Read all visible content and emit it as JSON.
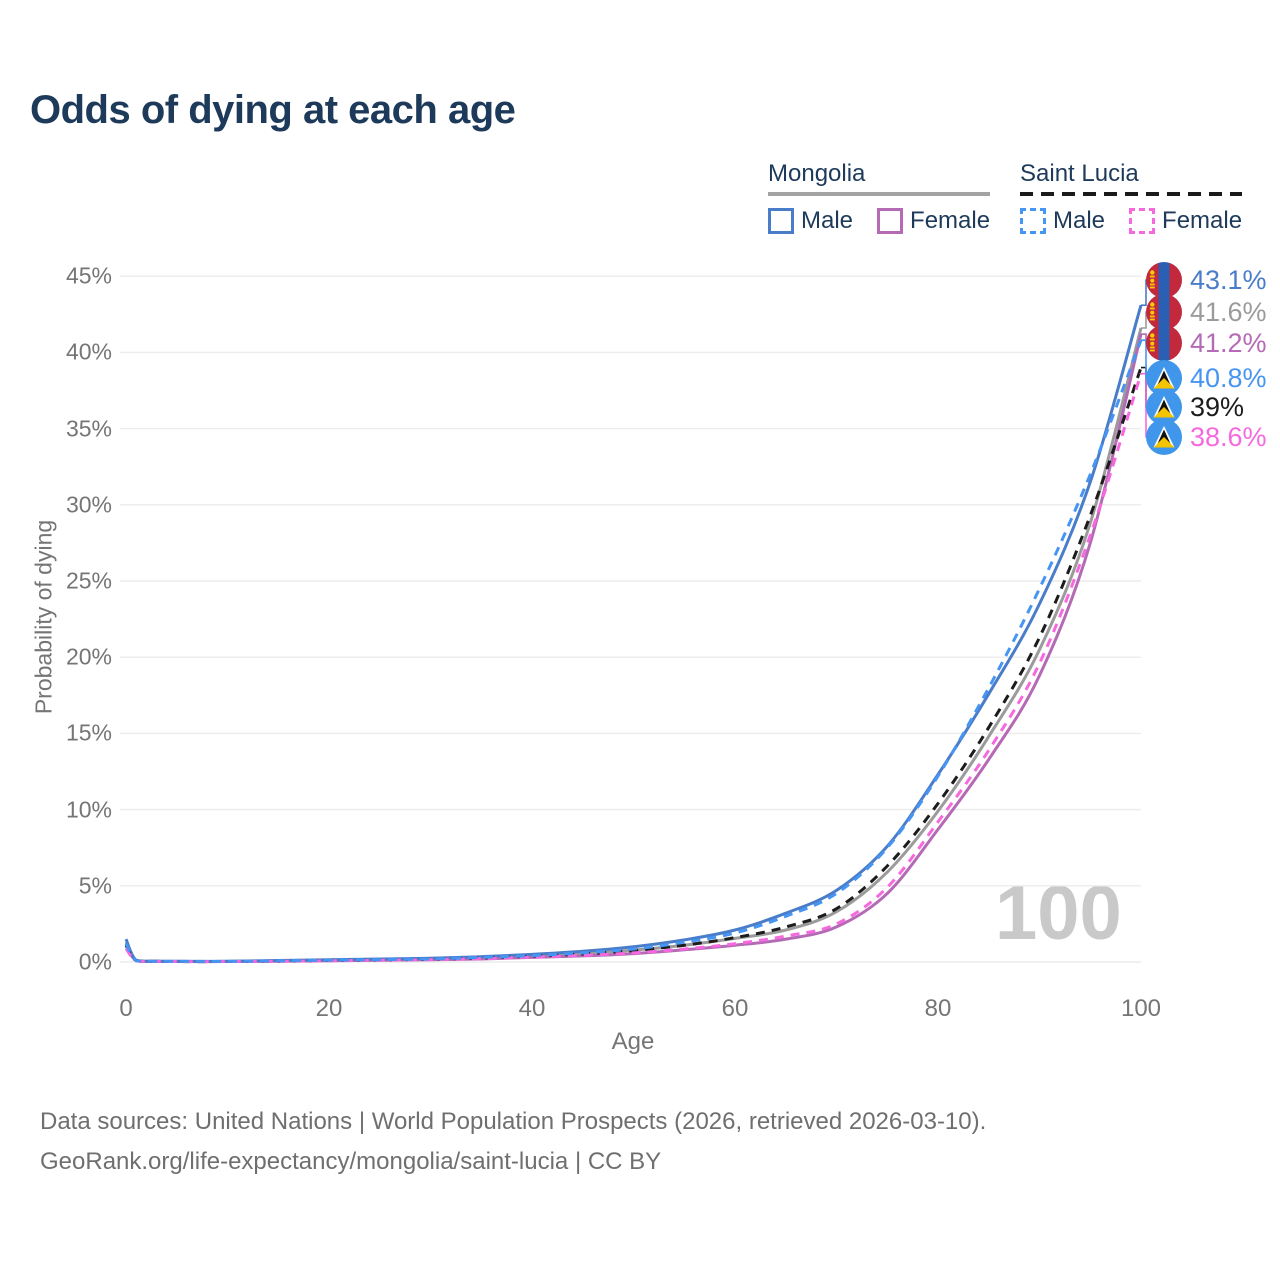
{
  "title": "Odds of dying at each age",
  "legend": {
    "groups": [
      {
        "name": "Mongolia",
        "line_style": "solid",
        "underline_color": "#a3a3a3",
        "items": [
          {
            "label": "Male",
            "color": "#4a7dc9"
          },
          {
            "label": "Female",
            "color": "#b46ab4"
          }
        ]
      },
      {
        "name": "Saint Lucia",
        "line_style": "dashed",
        "underline_color": "#1a1a1a",
        "items": [
          {
            "label": "Male",
            "color": "#4795f2"
          },
          {
            "label": "Female",
            "color": "#f669de"
          }
        ]
      }
    ]
  },
  "axes": {
    "x": {
      "label": "Age",
      "ticks": [
        "0",
        "20",
        "40",
        "60",
        "80",
        "100"
      ]
    },
    "y": {
      "label": "Probability of dying",
      "ticks": [
        "0%",
        "5%",
        "10%",
        "15%",
        "20%",
        "25%",
        "30%",
        "35%",
        "40%",
        "45%"
      ]
    }
  },
  "watermark": "100",
  "end_labels": [
    {
      "value": "43.1%",
      "flag": "mongolia",
      "color": "#4a7dc9"
    },
    {
      "value": "41.6%",
      "flag": "mongolia",
      "color": "#9b9b9b"
    },
    {
      "value": "41.2%",
      "flag": "mongolia",
      "color": "#b46ab4"
    },
    {
      "value": "40.8%",
      "flag": "saint-lucia",
      "color": "#4795f2"
    },
    {
      "value": "39%",
      "flag": "saint-lucia",
      "color": "#1c1c1c"
    },
    {
      "value": "38.6%",
      "flag": "saint-lucia",
      "color": "#f669de"
    }
  ],
  "footer": {
    "line1": "Data sources: United Nations | World Population Prospects (2026, retrieved 2026-03-10).",
    "line2": "GeoRank.org/life-expectancy/mongolia/saint-lucia | CC BY"
  },
  "chart_data": {
    "type": "line",
    "title": "Odds of dying at each age",
    "xlabel": "Age",
    "ylabel": "Probability of dying",
    "units": "percent",
    "xlim": [
      0,
      100
    ],
    "ylim": [
      0,
      45
    ],
    "grid": "horizontal",
    "legend_position": "top-right",
    "x": [
      0,
      1,
      3,
      5,
      10,
      15,
      20,
      25,
      30,
      35,
      40,
      45,
      50,
      55,
      60,
      65,
      70,
      75,
      80,
      85,
      90,
      95,
      100
    ],
    "series": [
      {
        "name": "Mongolia All",
        "country": "Mongolia",
        "sex": "all",
        "color": "#9b9b9b",
        "dashed": false,
        "end_label": "41.6%",
        "end_label_index": 1,
        "values": [
          1.3,
          0.1,
          0.05,
          0.04,
          0.04,
          0.08,
          0.12,
          0.16,
          0.2,
          0.28,
          0.4,
          0.55,
          0.78,
          1.1,
          1.55,
          2.1,
          3.3,
          5.9,
          9.9,
          14.8,
          20.5,
          28.8,
          41.6
        ]
      },
      {
        "name": "Mongolia Female",
        "country": "Mongolia",
        "sex": "female",
        "color": "#b46ab4",
        "dashed": false,
        "end_label": "41.2%",
        "end_label_index": 2,
        "values": [
          1.1,
          0.09,
          0.04,
          0.03,
          0.03,
          0.05,
          0.08,
          0.11,
          0.15,
          0.2,
          0.3,
          0.4,
          0.55,
          0.8,
          1.1,
          1.5,
          2.3,
          4.5,
          8.7,
          13.3,
          18.8,
          27.5,
          41.2
        ]
      },
      {
        "name": "Mongolia Male",
        "country": "Mongolia",
        "sex": "male",
        "color": "#4a7dc9",
        "dashed": false,
        "end_label": "43.1%",
        "end_label_index": 0,
        "values": [
          1.5,
          0.12,
          0.06,
          0.05,
          0.05,
          0.1,
          0.15,
          0.2,
          0.25,
          0.35,
          0.5,
          0.7,
          1.0,
          1.45,
          2.1,
          3.2,
          4.7,
          7.6,
          12.3,
          17.6,
          23.5,
          31.5,
          43.1
        ]
      },
      {
        "name": "Saint Lucia All",
        "country": "Saint Lucia",
        "sex": "all",
        "color": "#1c1c1c",
        "dashed": true,
        "end_label": "39%",
        "end_label_index": 4,
        "values": [
          1.1,
          0.09,
          0.04,
          0.03,
          0.03,
          0.06,
          0.1,
          0.14,
          0.18,
          0.26,
          0.38,
          0.52,
          0.75,
          1.1,
          1.6,
          2.3,
          3.5,
          6.3,
          10.4,
          15.4,
          21.3,
          29.3,
          39.0
        ]
      },
      {
        "name": "Saint Lucia Female",
        "country": "Saint Lucia",
        "sex": "female",
        "color": "#f669de",
        "dashed": true,
        "end_label": "38.6%",
        "end_label_index": 5,
        "values": [
          0.9,
          0.08,
          0.04,
          0.03,
          0.03,
          0.05,
          0.08,
          0.12,
          0.16,
          0.22,
          0.32,
          0.44,
          0.6,
          0.85,
          1.2,
          1.7,
          2.5,
          4.9,
          9.2,
          13.9,
          19.6,
          28.0,
          38.6
        ]
      },
      {
        "name": "Saint Lucia Male",
        "country": "Saint Lucia",
        "sex": "male",
        "color": "#4795f2",
        "dashed": true,
        "end_label": "40.8%",
        "end_label_index": 3,
        "values": [
          1.2,
          0.1,
          0.05,
          0.04,
          0.04,
          0.08,
          0.12,
          0.16,
          0.2,
          0.3,
          0.42,
          0.6,
          0.85,
          1.3,
          1.9,
          3.0,
          4.5,
          7.5,
          12.2,
          18.0,
          24.5,
          32.0,
          40.8
        ]
      }
    ]
  }
}
